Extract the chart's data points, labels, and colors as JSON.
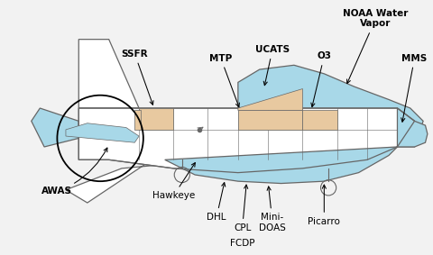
{
  "bg_color": "#f2f2f2",
  "line_color": "#666666",
  "light_blue": "#a8d8e8",
  "tan_color": "#e8c9a0",
  "white": "#ffffff",
  "lw": 0.9,
  "xlim": [
    0,
    10
  ],
  "ylim": [
    0,
    5.9
  ]
}
